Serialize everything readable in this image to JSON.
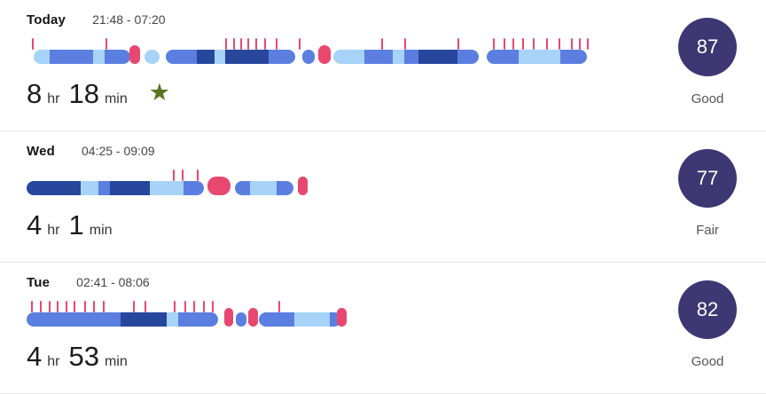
{
  "colors": {
    "sleep_light": "#a6d3f7",
    "sleep_medium": "#5b7fe0",
    "sleep_deep": "#27479d",
    "awake_pink": "#e8476f",
    "score_circle_bg": "#3d3873",
    "score_text": "#ffffff",
    "star_green": "#5c7321",
    "text_primary": "#141414",
    "text_secondary": "#545454",
    "divider": "#e4e4e4"
  },
  "chart_data": {
    "type": "bar",
    "description": "Horizontal sleep-stage timelines per night; segments are sleep stages (light/medium/deep blue), pink marks are awake moments"
  },
  "rows": [
    {
      "day": "Today",
      "time_range": "21:48 - 07:20",
      "duration_hours": "8",
      "duration_hr_unit": "hr",
      "duration_minutes": "18",
      "duration_min_unit": "min",
      "has_star": true,
      "score": "87",
      "quality": "Good",
      "bar": {
        "runs": [
          {
            "l": 1.2,
            "parts": [
              {
                "w": 2.8,
                "c": "light"
              },
              {
                "w": 7.6,
                "c": "medium"
              },
              {
                "w": 2.0,
                "c": "light"
              },
              {
                "w": 4.6,
                "c": "medium"
              }
            ]
          },
          {
            "l": 20.6,
            "parts": [
              {
                "w": 2.6,
                "c": "light"
              }
            ]
          },
          {
            "l": 24.4,
            "parts": [
              {
                "w": 5.4,
                "c": "medium"
              },
              {
                "w": 3.0,
                "c": "deep"
              },
              {
                "w": 2.0,
                "c": "light"
              },
              {
                "w": 7.6,
                "c": "deep"
              },
              {
                "w": 4.6,
                "c": "medium"
              }
            ]
          },
          {
            "l": 48.2,
            "parts": [
              {
                "w": 2.2,
                "c": "medium"
              }
            ]
          },
          {
            "l": 53.6,
            "parts": [
              {
                "w": 5.4,
                "c": "light"
              },
              {
                "w": 5.0,
                "c": "medium"
              },
              {
                "w": 2.0,
                "c": "light"
              },
              {
                "w": 2.6,
                "c": "medium"
              },
              {
                "w": 6.8,
                "c": "deep"
              },
              {
                "w": 3.6,
                "c": "medium"
              }
            ]
          },
          {
            "l": 80.4,
            "parts": [
              {
                "w": 5.6,
                "c": "medium"
              },
              {
                "w": 7.4,
                "c": "light"
              },
              {
                "w": 4.6,
                "c": "medium"
              }
            ]
          }
        ],
        "ticks": [
          1.0,
          13.8,
          34.8,
          36.2,
          37.4,
          38.6,
          40.0,
          41.6,
          43.6,
          47.6,
          62.0,
          66.0,
          75.4,
          81.6,
          83.4,
          85.0,
          86.6,
          88.6,
          90.8,
          93.0,
          95.2,
          96.6,
          98.0
        ],
        "bumps": [
          {
            "l": 18.0,
            "w": 1.9
          },
          {
            "l": 51.0,
            "w": 2.2
          }
        ]
      }
    },
    {
      "day": "Wed",
      "time_range": "04:25 - 09:09",
      "duration_hours": "4",
      "duration_hr_unit": "hr",
      "duration_minutes": "1",
      "duration_min_unit": "min",
      "has_star": false,
      "score": "77",
      "quality": "Fair",
      "bar": {
        "runs": [
          {
            "l": 0,
            "parts": [
              {
                "w": 9.5,
                "c": "deep"
              },
              {
                "w": 3.0,
                "c": "light"
              },
              {
                "w": 2.0,
                "c": "medium"
              },
              {
                "w": 7.0,
                "c": "deep"
              },
              {
                "w": 6.0,
                "c": "light"
              },
              {
                "w": 3.5,
                "c": "medium"
              }
            ]
          },
          {
            "l": 36.4,
            "parts": [
              {
                "w": 2.6,
                "c": "medium"
              },
              {
                "w": 4.8,
                "c": "light"
              },
              {
                "w": 2.8,
                "c": "medium"
              }
            ]
          }
        ],
        "ticks": [
          25.6,
          27.2,
          29.8
        ],
        "bumps": [
          {
            "l": 31.6,
            "w": 4.0
          },
          {
            "l": 47.4,
            "w": 1.7
          }
        ]
      }
    },
    {
      "day": "Tue",
      "time_range": "02:41 - 08:06",
      "duration_hours": "4",
      "duration_hr_unit": "hr",
      "duration_minutes": "53",
      "duration_min_unit": "min",
      "has_star": false,
      "score": "82",
      "quality": "Good",
      "bar": {
        "runs": [
          {
            "l": 0,
            "parts": [
              {
                "w": 16.5,
                "c": "medium"
              },
              {
                "w": 8.0,
                "c": "deep"
              },
              {
                "w": 2.0,
                "c": "light"
              },
              {
                "w": 7.0,
                "c": "medium"
              }
            ]
          },
          {
            "l": 36.6,
            "parts": [
              {
                "w": 1.8,
                "c": "medium"
              }
            ]
          },
          {
            "l": 40.6,
            "parts": [
              {
                "w": 6.2,
                "c": "medium"
              },
              {
                "w": 6.2,
                "c": "light"
              },
              {
                "w": 2.0,
                "c": "medium"
              }
            ]
          }
        ],
        "ticks": [
          0.8,
          2.4,
          3.8,
          5.2,
          6.8,
          8.2,
          10.0,
          11.6,
          13.4,
          18.6,
          20.6,
          25.8,
          27.6,
          29.2,
          30.8,
          32.4,
          44.0
        ],
        "bumps": [
          {
            "l": 34.6,
            "w": 1.6
          },
          {
            "l": 38.8,
            "w": 1.6
          },
          {
            "l": 54.2,
            "w": 1.8
          }
        ]
      }
    }
  ]
}
